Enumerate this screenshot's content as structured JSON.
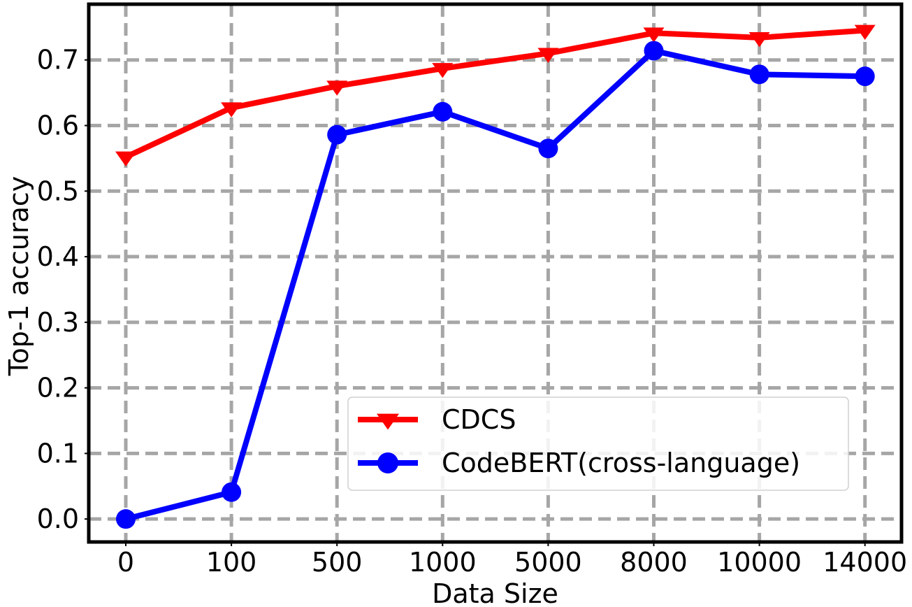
{
  "chart_data": {
    "type": "line",
    "title": "",
    "xlabel": "Data Size",
    "ylabel": "Top-1 accuracy",
    "categories": [
      "0",
      "100",
      "500",
      "1000",
      "5000",
      "8000",
      "10000",
      "14000"
    ],
    "ylim": [
      -0.035,
      0.785
    ],
    "yticks": [
      "0.0",
      "0.1",
      "0.2",
      "0.3",
      "0.4",
      "0.5",
      "0.6",
      "0.7"
    ],
    "grid": true,
    "legend_position": "lower-right",
    "series": [
      {
        "name": "CDCS",
        "color": "#ff0000",
        "marker": "triangle-down",
        "values": [
          0.552,
          0.627,
          0.66,
          0.687,
          0.71,
          0.741,
          0.734,
          0.745
        ]
      },
      {
        "name": "CodeBERT(cross-language)",
        "color": "#0000ff",
        "marker": "circle",
        "values": [
          0.0,
          0.041,
          0.586,
          0.621,
          0.565,
          0.714,
          0.678,
          0.675
        ]
      }
    ]
  }
}
